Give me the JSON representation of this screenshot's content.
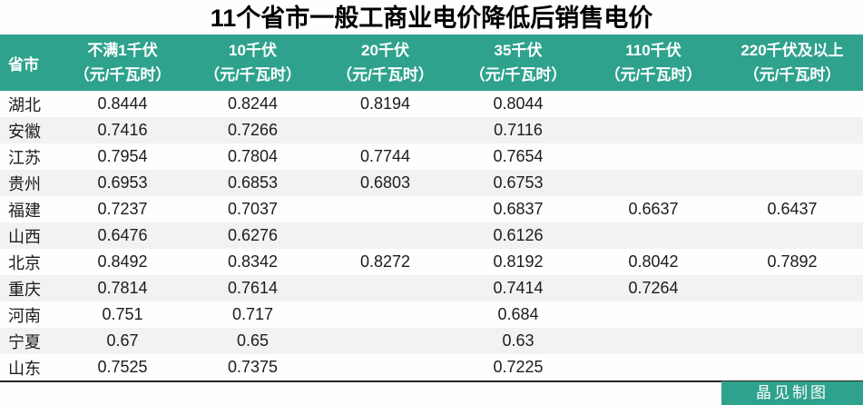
{
  "title": "11个省市一般工商业电价降低后销售电价",
  "header": {
    "row_header_label": "省市",
    "unit_label": "（元/千瓦时）"
  },
  "chart_data": {
    "type": "table",
    "title": "11个省市一般工商业电价降低后销售电价",
    "row_header": "省市",
    "unit": "元/千瓦时",
    "columns": [
      "不满1千伏",
      "10千伏",
      "20千伏",
      "35千伏",
      "110千伏",
      "220千伏及以上"
    ],
    "rows": [
      {
        "province": "湖北",
        "values": [
          "0.8444",
          "0.8244",
          "0.8194",
          "0.8044",
          "",
          ""
        ]
      },
      {
        "province": "安徽",
        "values": [
          "0.7416",
          "0.7266",
          "",
          "0.7116",
          "",
          ""
        ]
      },
      {
        "province": "江苏",
        "values": [
          "0.7954",
          "0.7804",
          "0.7744",
          "0.7654",
          "",
          ""
        ]
      },
      {
        "province": "贵州",
        "values": [
          "0.6953",
          "0.6853",
          "0.6803",
          "0.6753",
          "",
          ""
        ]
      },
      {
        "province": "福建",
        "values": [
          "0.7237",
          "0.7037",
          "",
          "0.6837",
          "0.6637",
          "0.6437"
        ]
      },
      {
        "province": "山西",
        "values": [
          "0.6476",
          "0.6276",
          "",
          "0.6126",
          "",
          ""
        ]
      },
      {
        "province": "北京",
        "values": [
          "0.8492",
          "0.8342",
          "0.8272",
          "0.8192",
          "0.8042",
          "0.7892"
        ]
      },
      {
        "province": "重庆",
        "values": [
          "0.7814",
          "0.7614",
          "",
          "0.7414",
          "0.7264",
          ""
        ]
      },
      {
        "province": "河南",
        "values": [
          "0.751",
          "0.717",
          "",
          "0.684",
          "",
          ""
        ]
      },
      {
        "province": "宁夏",
        "values": [
          "0.67",
          "0.65",
          "",
          "0.63",
          "",
          ""
        ]
      },
      {
        "province": "山东",
        "values": [
          "0.7525",
          "0.7375",
          "",
          "0.7225",
          "",
          ""
        ]
      }
    ]
  },
  "footer": {
    "credit": "晶见制图"
  },
  "colors": {
    "header_bg": "#2ea28c",
    "header_text": "#ffffff",
    "stripe_bg": "#f2f2f2",
    "body_text": "#1c1c1c",
    "bottom_border": "#262626"
  }
}
